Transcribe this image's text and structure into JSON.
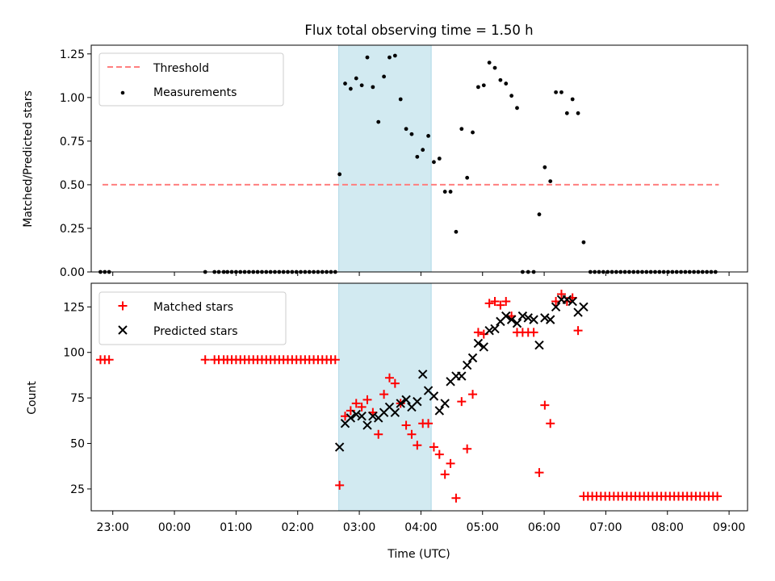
{
  "title": "Flux total observing time = 1.50 h",
  "colors": {
    "threshold": "#ff7f7f",
    "measurement": "#000000",
    "matched": "#ff0000",
    "predicted": "#000000",
    "shade": "#add8e6"
  },
  "chart_data": [
    {
      "type": "scatter",
      "ylabel": "Matched/Predicted stars",
      "ylim": [
        0,
        1.3
      ],
      "yticks": [
        "0.00",
        "0.25",
        "0.50",
        "0.75",
        "1.00",
        "1.25"
      ],
      "xlim": [
        -1.35,
        9.3
      ],
      "shaded_span": [
        "02:40",
        "04:10"
      ],
      "legend_position": "upper-left",
      "threshold": {
        "name": "Threshold",
        "y": 0.5,
        "x": [
          "22:50",
          "08:50"
        ]
      },
      "series": [
        {
          "name": "Measurements",
          "points": [
            [
              -1.2,
              0
            ],
            [
              -1.13,
              0
            ],
            [
              -1.06,
              0
            ],
            [
              0.5,
              0
            ],
            [
              0.65,
              0
            ],
            [
              0.72,
              0
            ],
            [
              0.8,
              0
            ],
            [
              0.86,
              0
            ],
            [
              0.93,
              0
            ],
            [
              1.0,
              0
            ],
            [
              1.07,
              0
            ],
            [
              1.14,
              0
            ],
            [
              1.21,
              0
            ],
            [
              1.28,
              0
            ],
            [
              1.35,
              0
            ],
            [
              1.42,
              0
            ],
            [
              1.49,
              0
            ],
            [
              1.56,
              0
            ],
            [
              1.63,
              0
            ],
            [
              1.7,
              0
            ],
            [
              1.77,
              0
            ],
            [
              1.84,
              0
            ],
            [
              1.91,
              0
            ],
            [
              1.98,
              0
            ],
            [
              2.05,
              0
            ],
            [
              2.12,
              0
            ],
            [
              2.19,
              0
            ],
            [
              2.26,
              0
            ],
            [
              2.33,
              0
            ],
            [
              2.4,
              0
            ],
            [
              2.47,
              0
            ],
            [
              2.54,
              0
            ],
            [
              2.61,
              0
            ],
            [
              2.68,
              0.56
            ],
            [
              2.77,
              1.08
            ],
            [
              2.86,
              1.05
            ],
            [
              2.95,
              1.11
            ],
            [
              3.04,
              1.07
            ],
            [
              3.13,
              1.23
            ],
            [
              3.22,
              1.06
            ],
            [
              3.31,
              0.86
            ],
            [
              3.4,
              1.12
            ],
            [
              3.49,
              1.23
            ],
            [
              3.58,
              1.24
            ],
            [
              3.67,
              0.99
            ],
            [
              3.76,
              0.82
            ],
            [
              3.85,
              0.79
            ],
            [
              3.94,
              0.66
            ],
            [
              4.03,
              0.7
            ],
            [
              4.12,
              0.78
            ],
            [
              4.21,
              0.63
            ],
            [
              4.3,
              0.65
            ],
            [
              4.39,
              0.46
            ],
            [
              4.48,
              0.46
            ],
            [
              4.57,
              0.23
            ],
            [
              4.66,
              0.82
            ],
            [
              4.75,
              0.54
            ],
            [
              4.84,
              0.8
            ],
            [
              4.93,
              1.06
            ],
            [
              5.02,
              1.07
            ],
            [
              5.11,
              1.2
            ],
            [
              5.2,
              1.17
            ],
            [
              5.29,
              1.1
            ],
            [
              5.38,
              1.08
            ],
            [
              5.47,
              1.01
            ],
            [
              5.56,
              0.94
            ],
            [
              5.65,
              0
            ],
            [
              5.74,
              0
            ],
            [
              5.83,
              0
            ],
            [
              5.92,
              0.33
            ],
            [
              6.01,
              0.6
            ],
            [
              6.1,
              0.52
            ],
            [
              6.19,
              1.03
            ],
            [
              6.28,
              1.03
            ],
            [
              6.37,
              0.91
            ],
            [
              6.46,
              0.99
            ],
            [
              6.55,
              0.91
            ],
            [
              6.64,
              0.17
            ],
            [
              6.75,
              0
            ],
            [
              6.82,
              0
            ],
            [
              6.89,
              0
            ],
            [
              6.96,
              0
            ],
            [
              7.03,
              0
            ],
            [
              7.1,
              0
            ],
            [
              7.17,
              0
            ],
            [
              7.24,
              0
            ],
            [
              7.31,
              0
            ],
            [
              7.38,
              0
            ],
            [
              7.45,
              0
            ],
            [
              7.52,
              0
            ],
            [
              7.59,
              0
            ],
            [
              7.66,
              0
            ],
            [
              7.73,
              0
            ],
            [
              7.8,
              0
            ],
            [
              7.87,
              0
            ],
            [
              7.94,
              0
            ],
            [
              8.01,
              0
            ],
            [
              8.08,
              0
            ],
            [
              8.15,
              0
            ],
            [
              8.22,
              0
            ],
            [
              8.29,
              0
            ],
            [
              8.36,
              0
            ],
            [
              8.43,
              0
            ],
            [
              8.5,
              0
            ],
            [
              8.57,
              0
            ],
            [
              8.64,
              0
            ],
            [
              8.71,
              0
            ],
            [
              8.78,
              0
            ]
          ]
        }
      ]
    },
    {
      "type": "scatter",
      "xlabel": "Time (UTC)",
      "ylabel": "Count",
      "ylim": [
        13,
        138
      ],
      "yticks": [
        "25",
        "50",
        "75",
        "100",
        "125"
      ],
      "xlim": [
        -1.35,
        9.3
      ],
      "xticks": [
        "23:00",
        "00:00",
        "01:00",
        "02:00",
        "03:00",
        "04:00",
        "05:00",
        "06:00",
        "07:00",
        "08:00",
        "09:00"
      ],
      "shaded_span": [
        "02:40",
        "04:10"
      ],
      "legend_position": "upper-left",
      "series": [
        {
          "name": "Matched stars",
          "marker": "+",
          "points": [
            [
              -1.2,
              96
            ],
            [
              -1.13,
              96
            ],
            [
              -1.06,
              96
            ],
            [
              0.5,
              96
            ],
            [
              0.65,
              96
            ],
            [
              0.72,
              96
            ],
            [
              0.8,
              96
            ],
            [
              0.86,
              96
            ],
            [
              0.93,
              96
            ],
            [
              1.0,
              96
            ],
            [
              1.07,
              96
            ],
            [
              1.14,
              96
            ],
            [
              1.21,
              96
            ],
            [
              1.28,
              96
            ],
            [
              1.35,
              96
            ],
            [
              1.42,
              96
            ],
            [
              1.49,
              96
            ],
            [
              1.56,
              96
            ],
            [
              1.63,
              96
            ],
            [
              1.7,
              96
            ],
            [
              1.77,
              96
            ],
            [
              1.84,
              96
            ],
            [
              1.91,
              96
            ],
            [
              1.98,
              96
            ],
            [
              2.05,
              96
            ],
            [
              2.12,
              96
            ],
            [
              2.19,
              96
            ],
            [
              2.26,
              96
            ],
            [
              2.33,
              96
            ],
            [
              2.4,
              96
            ],
            [
              2.47,
              96
            ],
            [
              2.54,
              96
            ],
            [
              2.61,
              96
            ],
            [
              2.68,
              27
            ],
            [
              2.77,
              65
            ],
            [
              2.86,
              68
            ],
            [
              2.95,
              72
            ],
            [
              3.04,
              70
            ],
            [
              3.13,
              74
            ],
            [
              3.22,
              67
            ],
            [
              3.31,
              55
            ],
            [
              3.4,
              77
            ],
            [
              3.49,
              86
            ],
            [
              3.58,
              83
            ],
            [
              3.67,
              72
            ],
            [
              3.76,
              60
            ],
            [
              3.85,
              55
            ],
            [
              3.94,
              49
            ],
            [
              4.03,
              61
            ],
            [
              4.12,
              61
            ],
            [
              4.21,
              48
            ],
            [
              4.3,
              44
            ],
            [
              4.39,
              33
            ],
            [
              4.48,
              39
            ],
            [
              4.57,
              20
            ],
            [
              4.66,
              73
            ],
            [
              4.75,
              47
            ],
            [
              4.84,
              77
            ],
            [
              4.93,
              111
            ],
            [
              5.02,
              110
            ],
            [
              5.11,
              127
            ],
            [
              5.2,
              128
            ],
            [
              5.29,
              126
            ],
            [
              5.38,
              128
            ],
            [
              5.47,
              120
            ],
            [
              5.56,
              111
            ],
            [
              5.65,
              111
            ],
            [
              5.74,
              111
            ],
            [
              5.83,
              111
            ],
            [
              5.92,
              34
            ],
            [
              6.01,
              71
            ],
            [
              6.1,
              61
            ],
            [
              6.19,
              128
            ],
            [
              6.28,
              132
            ],
            [
              6.37,
              128
            ],
            [
              6.46,
              130
            ],
            [
              6.55,
              112
            ],
            [
              6.64,
              21
            ],
            [
              6.71,
              21
            ],
            [
              6.78,
              21
            ],
            [
              6.85,
              21
            ],
            [
              6.92,
              21
            ],
            [
              6.99,
              21
            ],
            [
              7.06,
              21
            ],
            [
              7.13,
              21
            ],
            [
              7.2,
              21
            ],
            [
              7.27,
              21
            ],
            [
              7.34,
              21
            ],
            [
              7.41,
              21
            ],
            [
              7.48,
              21
            ],
            [
              7.55,
              21
            ],
            [
              7.62,
              21
            ],
            [
              7.69,
              21
            ],
            [
              7.76,
              21
            ],
            [
              7.83,
              21
            ],
            [
              7.9,
              21
            ],
            [
              7.97,
              21
            ],
            [
              8.04,
              21
            ],
            [
              8.11,
              21
            ],
            [
              8.18,
              21
            ],
            [
              8.25,
              21
            ],
            [
              8.32,
              21
            ],
            [
              8.39,
              21
            ],
            [
              8.46,
              21
            ],
            [
              8.53,
              21
            ],
            [
              8.6,
              21
            ],
            [
              8.67,
              21
            ],
            [
              8.74,
              21
            ],
            [
              8.81,
              21
            ]
          ]
        },
        {
          "name": "Predicted stars",
          "marker": "x",
          "points": [
            [
              2.68,
              48
            ],
            [
              2.77,
              61
            ],
            [
              2.86,
              64
            ],
            [
              2.95,
              66
            ],
            [
              3.04,
              65
            ],
            [
              3.13,
              60
            ],
            [
              3.22,
              65
            ],
            [
              3.31,
              64
            ],
            [
              3.4,
              67
            ],
            [
              3.49,
              70
            ],
            [
              3.58,
              67
            ],
            [
              3.67,
              72
            ],
            [
              3.76,
              74
            ],
            [
              3.85,
              70
            ],
            [
              3.94,
              73
            ],
            [
              4.03,
              88
            ],
            [
              4.12,
              79
            ],
            [
              4.21,
              76
            ],
            [
              4.3,
              68
            ],
            [
              4.39,
              72
            ],
            [
              4.48,
              84
            ],
            [
              4.57,
              87
            ],
            [
              4.66,
              87
            ],
            [
              4.75,
              93
            ],
            [
              4.84,
              97
            ],
            [
              4.93,
              105
            ],
            [
              5.02,
              103
            ],
            [
              5.11,
              112
            ],
            [
              5.2,
              113
            ],
            [
              5.29,
              117
            ],
            [
              5.38,
              120
            ],
            [
              5.47,
              118
            ],
            [
              5.56,
              116
            ],
            [
              5.65,
              120
            ],
            [
              5.74,
              119
            ],
            [
              5.83,
              118
            ],
            [
              5.92,
              104
            ],
            [
              6.01,
              119
            ],
            [
              6.1,
              118
            ],
            [
              6.19,
              125
            ],
            [
              6.28,
              129
            ],
            [
              6.37,
              129
            ],
            [
              6.46,
              128
            ],
            [
              6.55,
              122
            ],
            [
              6.64,
              125
            ]
          ]
        }
      ]
    }
  ]
}
